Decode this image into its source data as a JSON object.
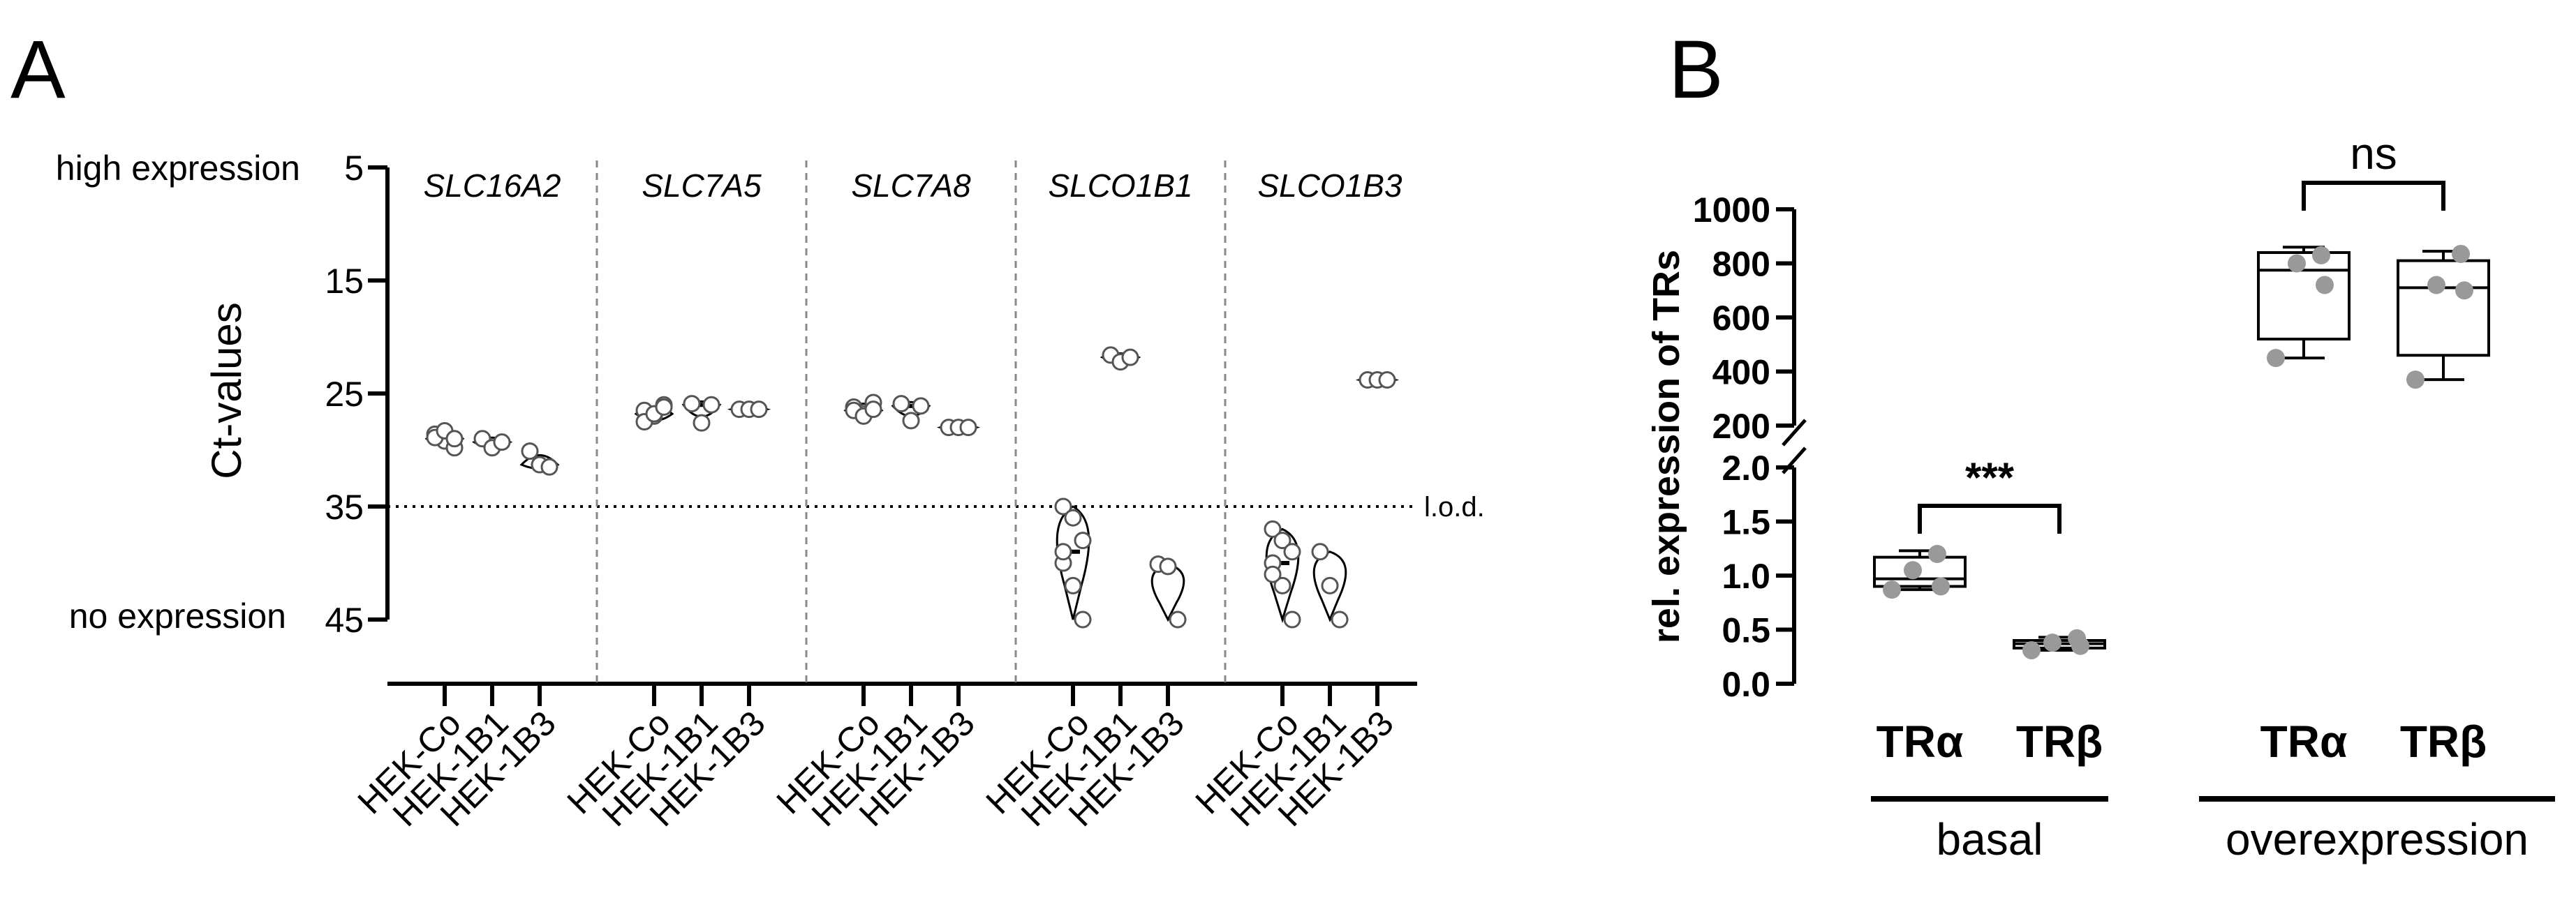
{
  "panel_labels": [
    "A",
    "B"
  ],
  "chart_data": [
    {
      "type": "scatter",
      "subtype": "violin",
      "panel": "A",
      "ylabel": "Ct-values",
      "ylim": [
        5,
        45
      ],
      "y_inverted": true,
      "y_ticks": [
        5,
        15,
        25,
        35,
        45
      ],
      "y_annotation_top": "high expression",
      "y_annotation_bottom": "no expression",
      "reference_line": {
        "value": 35,
        "label": "l.o.d.",
        "style": "dotted"
      },
      "cell_lines": [
        "HEK-Co",
        "HEK-1B1",
        "HEK-1B3"
      ],
      "genes": [
        {
          "name": "SLC16A2",
          "groups": [
            {
              "cell_line": "HEK-Co",
              "values": [
                28.6,
                29.2,
                29.8,
                28.9,
                28.3,
                29.0
              ]
            },
            {
              "cell_line": "HEK-1B1",
              "values": [
                29.0,
                29.8,
                29.3
              ]
            },
            {
              "cell_line": "HEK-1B3",
              "values": [
                30.1,
                31.3,
                31.5
              ]
            }
          ]
        },
        {
          "name": "SLC7A5",
          "groups": [
            {
              "cell_line": "HEK-Co",
              "values": [
                26.5,
                27.0,
                26.0,
                27.5,
                26.8,
                26.2
              ]
            },
            {
              "cell_line": "HEK-1B1",
              "values": [
                25.9,
                27.6,
                26.0
              ]
            },
            {
              "cell_line": "HEK-1B3",
              "values": [
                26.4,
                26.4,
                26.4
              ]
            }
          ]
        },
        {
          "name": "SLC7A8",
          "groups": [
            {
              "cell_line": "HEK-Co",
              "values": [
                26.2,
                26.8,
                25.8,
                26.5,
                27.0,
                26.4
              ]
            },
            {
              "cell_line": "HEK-1B1",
              "values": [
                25.9,
                27.4,
                26.1
              ]
            },
            {
              "cell_line": "HEK-1B3",
              "values": [
                28.0,
                28.0,
                28.0
              ]
            }
          ]
        },
        {
          "name": "SLCO1B1",
          "groups": [
            {
              "cell_line": "HEK-Co",
              "values": [
                35.0,
                36.0,
                38.0,
                40.0,
                42.0,
                45.0,
                39.0
              ]
            },
            {
              "cell_line": "HEK-1B1",
              "values": [
                21.6,
                22.2,
                21.8
              ]
            },
            {
              "cell_line": "HEK-1B3",
              "values": [
                40.1,
                40.3,
                45.0
              ]
            }
          ]
        },
        {
          "name": "SLCO1B3",
          "groups": [
            {
              "cell_line": "HEK-Co",
              "values": [
                37.0,
                38.0,
                39.0,
                40.0,
                42.0,
                45.0,
                41.0
              ]
            },
            {
              "cell_line": "HEK-1B1",
              "values": [
                39.0,
                42.0,
                45.0
              ]
            },
            {
              "cell_line": "HEK-1B3",
              "values": [
                23.8,
                23.8,
                23.8
              ]
            }
          ]
        }
      ]
    },
    {
      "type": "box",
      "panel": "B",
      "ylabel": "rel. expression of TRs",
      "y_axis_broken": true,
      "y_lower": {
        "range": [
          0.0,
          2.0
        ],
        "ticks": [
          "0.0",
          "0.5",
          "1.0",
          "1.5",
          "2.0"
        ]
      },
      "y_upper": {
        "range": [
          200,
          1000
        ],
        "ticks": [
          "200",
          "400",
          "600",
          "800",
          "1000"
        ]
      },
      "groups": [
        {
          "name": "basal",
          "segment": "lower",
          "categories": [
            {
              "name": "TRα",
              "min": 0.87,
              "q1": 0.9,
              "median": 0.97,
              "q3": 1.17,
              "max": 1.23,
              "points": [
                0.87,
                0.9,
                1.05,
                1.2
              ]
            },
            {
              "name": "TRβ",
              "min": 0.31,
              "q1": 0.33,
              "median": 0.37,
              "q3": 0.4,
              "max": 0.43,
              "points": [
                0.31,
                0.35,
                0.38,
                0.42
              ]
            }
          ],
          "significance": "***"
        },
        {
          "name": "overexpression",
          "segment": "upper",
          "categories": [
            {
              "name": "TRα",
              "min": 450,
              "q1": 520,
              "median": 775,
              "q3": 840,
              "max": 860,
              "points": [
                450,
                720,
                800,
                830
              ]
            },
            {
              "name": "TRβ",
              "min": 370,
              "q1": 460,
              "median": 710,
              "q3": 810,
              "max": 845,
              "points": [
                370,
                700,
                720,
                835
              ]
            }
          ],
          "significance": "ns"
        }
      ]
    }
  ]
}
